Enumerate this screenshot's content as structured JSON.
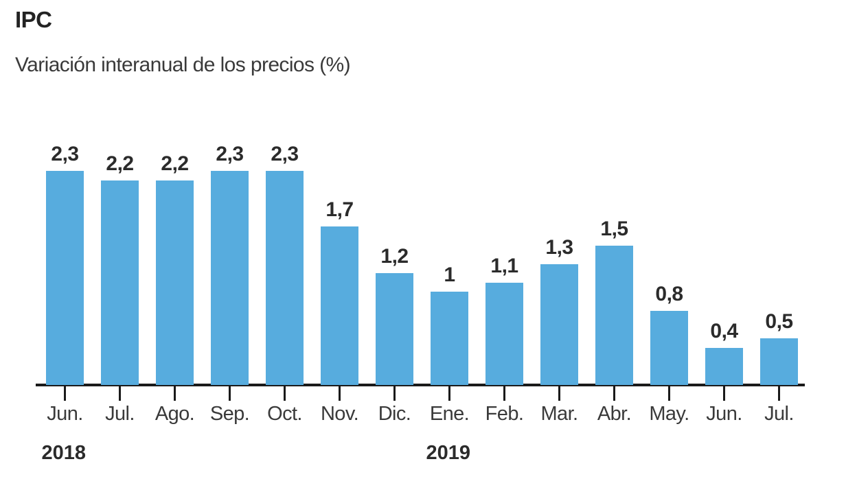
{
  "chart_data": {
    "type": "bar",
    "title": "IPC",
    "subtitle": "Variación interanual de los precios (%)",
    "categories": [
      "Jun.",
      "Jul.",
      "Ago.",
      "Sep.",
      "Oct.",
      "Nov.",
      "Dic.",
      "Ene.",
      "Feb.",
      "Mar.",
      "Abr.",
      "May.",
      "Jun.",
      "Jul."
    ],
    "values": [
      2.3,
      2.2,
      2.2,
      2.3,
      2.3,
      1.7,
      1.2,
      1,
      1.1,
      1.3,
      1.5,
      0.8,
      0.4,
      0.5
    ],
    "value_labels": [
      "2,3",
      "2,2",
      "2,2",
      "2,3",
      "2,3",
      "1,7",
      "1,2",
      "1",
      "1,1",
      "1,3",
      "1,5",
      "0,8",
      "0,4",
      "0,5"
    ],
    "year_groups": [
      {
        "label": "2018",
        "start_index": 0
      },
      {
        "label": "2019",
        "start_index": 7
      }
    ],
    "xlabel": "",
    "ylabel": "",
    "ylim": [
      0,
      2.5
    ],
    "grid": false,
    "legend": false,
    "colors": {
      "bar": "#57ACDE",
      "axis": "#1a1a1a",
      "value_label": "#2b2b2b",
      "month_label": "#3a3a3a",
      "year_label": "#2b2b2b"
    }
  }
}
